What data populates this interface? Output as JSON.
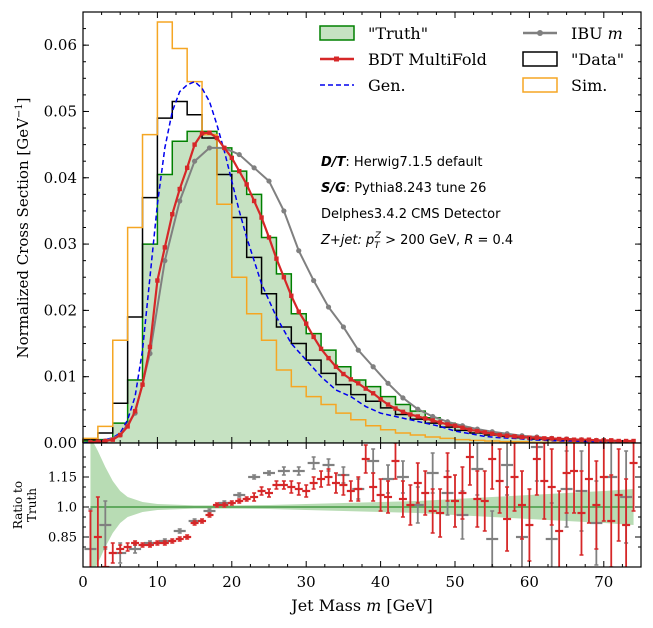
{
  "chart_data": {
    "type": "histogram",
    "xlabel": "Jet Mass",
    "xlabel_var": "m",
    "xlabel_unit": "[GeV]",
    "ylabel_main": "Normalized Cross Section [GeV",
    "ylabel_sup": "−1",
    "ylabel_close": "]",
    "ratio_ylabel_1": "Ratio to",
    "ratio_ylabel_2": "Truth",
    "xlim": [
      0,
      75
    ],
    "ylim": [
      0,
      0.065
    ],
    "ratio_ylim": [
      0.7,
      1.32
    ],
    "x_ticks": [
      "0",
      "10",
      "20",
      "30",
      "40",
      "50",
      "60",
      "70"
    ],
    "y_ticks": [
      "0.00",
      "0.01",
      "0.02",
      "0.03",
      "0.04",
      "0.05",
      "0.06"
    ],
    "ratio_ticks": [
      "0.85",
      "1.0",
      "1.15"
    ],
    "bin_edges": [
      0,
      2,
      4,
      6,
      8,
      10,
      12,
      14,
      16,
      18,
      20,
      22,
      24,
      26,
      28,
      30,
      32,
      34,
      36,
      38,
      40,
      42,
      44,
      46,
      48,
      50,
      52,
      54,
      56,
      58,
      60,
      62,
      64,
      66,
      68,
      70,
      72,
      74
    ],
    "series": [
      {
        "name": "\"Truth\"",
        "style": "filled-step",
        "values": [
          0.0003,
          0.0005,
          0.003,
          0.0095,
          0.03,
          0.0405,
          0.0455,
          0.047,
          0.047,
          0.0445,
          0.041,
          0.0375,
          0.031,
          0.0255,
          0.0195,
          0.0165,
          0.014,
          0.0115,
          0.0095,
          0.0085,
          0.007,
          0.0058,
          0.0048,
          0.0038,
          0.003,
          0.0024,
          0.0019,
          0.0015,
          0.0012,
          0.001,
          0.0008,
          0.0007,
          0.0006,
          0.0005,
          0.0004,
          0.0003,
          0.0003
        ]
      },
      {
        "name": "\"Data\"",
        "style": "step",
        "values": [
          0.0005,
          0.0015,
          0.006,
          0.019,
          0.037,
          0.049,
          0.0515,
          0.0495,
          0.046,
          0.0405,
          0.034,
          0.028,
          0.0225,
          0.0175,
          0.015,
          0.0125,
          0.0105,
          0.0088,
          0.0073,
          0.0063,
          0.0053,
          0.0043,
          0.0036,
          0.003,
          0.0024,
          0.0019,
          0.0015,
          0.0012,
          0.001,
          0.0008,
          0.0006,
          0.0005,
          0.0004,
          0.0004,
          0.0003,
          0.0003,
          0.0002
        ]
      },
      {
        "name": "Sim.",
        "style": "step",
        "values": [
          0.0007,
          0.0025,
          0.0155,
          0.0325,
          0.0465,
          0.0635,
          0.0595,
          0.0545,
          0.0465,
          0.036,
          0.025,
          0.0195,
          0.0155,
          0.011,
          0.0085,
          0.007,
          0.0058,
          0.0045,
          0.0035,
          0.0026,
          0.002,
          0.0015,
          0.0012,
          0.0009,
          0.0007,
          0.0005,
          0.0004,
          0.0003,
          0.0002,
          0.0002,
          0.0001,
          0.0001,
          0.0001,
          0.0001,
          0.0001,
          0.0001,
          0.0001
        ]
      },
      {
        "name": "BDT MultiFold",
        "style": "line-markers",
        "x": [
          1,
          2,
          3,
          4,
          5,
          6,
          7,
          8,
          9,
          10,
          11,
          12,
          13,
          14,
          15,
          16,
          17,
          18,
          19,
          20,
          21,
          22,
          23,
          24,
          25,
          26,
          27,
          28,
          29,
          30,
          31,
          32,
          33,
          34,
          35,
          36,
          37,
          38,
          39,
          40,
          41,
          42,
          43,
          44,
          45,
          46,
          47,
          48,
          49,
          50,
          51,
          52,
          53,
          54,
          55,
          56,
          57,
          58,
          59,
          60,
          61,
          62,
          63,
          64,
          65,
          66,
          67,
          68,
          69,
          70,
          71,
          72,
          73,
          74
        ],
        "values": [
          0.0001,
          0.0002,
          0.0003,
          0.0005,
          0.0012,
          0.0025,
          0.0048,
          0.0088,
          0.0145,
          0.0245,
          0.0295,
          0.0345,
          0.0383,
          0.0415,
          0.045,
          0.0467,
          0.0468,
          0.046,
          0.0445,
          0.043,
          0.041,
          0.039,
          0.0365,
          0.034,
          0.031,
          0.0278,
          0.025,
          0.0222,
          0.0198,
          0.018,
          0.016,
          0.0142,
          0.0128,
          0.0115,
          0.0104,
          0.0096,
          0.009,
          0.0082,
          0.0075,
          0.0066,
          0.0058,
          0.0052,
          0.0047,
          0.0043,
          0.004,
          0.0037,
          0.0034,
          0.0031,
          0.0028,
          0.0026,
          0.0023,
          0.002,
          0.0018,
          0.0016,
          0.0014,
          0.0012,
          0.0011,
          0.001,
          0.0009,
          0.0008,
          0.0008,
          0.0007,
          0.0007,
          0.0006,
          0.0006,
          0.0005,
          0.0005,
          0.0005,
          0.0004,
          0.0004,
          0.0004,
          0.0003,
          0.0003,
          0.0003
        ]
      },
      {
        "name": "IBU m",
        "style": "line-markers",
        "x": [
          1,
          3,
          5,
          7,
          9,
          11,
          13,
          15,
          17,
          19,
          21,
          23,
          25,
          27,
          29,
          31,
          33,
          35,
          37,
          39,
          41,
          43,
          45,
          47,
          49,
          51,
          53,
          55,
          57,
          59,
          61,
          63,
          65,
          67,
          69,
          71,
          73
        ],
        "values": [
          0.0001,
          0.0003,
          0.0012,
          0.0045,
          0.0135,
          0.0275,
          0.0365,
          0.0425,
          0.0445,
          0.0445,
          0.0435,
          0.0415,
          0.0395,
          0.035,
          0.029,
          0.0245,
          0.0205,
          0.0175,
          0.014,
          0.0115,
          0.009,
          0.0068,
          0.0051,
          0.004,
          0.0032,
          0.0026,
          0.0021,
          0.0017,
          0.0014,
          0.0011,
          0.0009,
          0.0007,
          0.0006,
          0.0005,
          0.0004,
          0.0003,
          0.0002
        ]
      },
      {
        "name": "Gen.",
        "style": "dashed",
        "x": [
          0,
          2,
          4,
          5,
          6,
          7,
          8,
          9,
          10,
          11,
          12,
          13,
          14,
          15,
          16,
          17,
          18,
          19,
          20,
          21,
          22,
          24,
          26,
          28,
          30,
          32,
          34,
          36,
          38,
          40,
          42,
          44,
          46,
          48,
          50,
          52,
          54,
          56,
          58,
          60,
          62,
          64,
          66,
          68,
          70,
          72,
          74
        ],
        "values": [
          0.0,
          0.0002,
          0.0008,
          0.0015,
          0.0035,
          0.007,
          0.014,
          0.025,
          0.036,
          0.0445,
          0.05,
          0.053,
          0.054,
          0.0545,
          0.0535,
          0.0515,
          0.048,
          0.044,
          0.0395,
          0.035,
          0.031,
          0.024,
          0.019,
          0.015,
          0.0125,
          0.01,
          0.008,
          0.007,
          0.0055,
          0.0045,
          0.004,
          0.0035,
          0.003,
          0.0025,
          0.0018,
          0.0014,
          0.001,
          0.0008,
          0.0007,
          0.0005,
          0.0004,
          0.0003,
          0.0003,
          0.0002,
          0.0002,
          0.0001,
          0.0001
        ]
      }
    ],
    "ratio_series": [
      {
        "name": "BDT MultiFold",
        "x": [
          1,
          2,
          3,
          4,
          5,
          6,
          7,
          8,
          9,
          10,
          11,
          12,
          13,
          14,
          15,
          16,
          17,
          18,
          19,
          20,
          21,
          22,
          23,
          24,
          25,
          26,
          27,
          28,
          29,
          30,
          31,
          32,
          33,
          34,
          35,
          36,
          37,
          38,
          39,
          40,
          41,
          42,
          43,
          44,
          45,
          46,
          47,
          48,
          49,
          50,
          51,
          52,
          53,
          54,
          55,
          56,
          57,
          58,
          59,
          60,
          61,
          62,
          63,
          64,
          65,
          66,
          67,
          68,
          69,
          70,
          71,
          72,
          73,
          74
        ],
        "values": [
          0.68,
          0.85,
          0.7,
          0.77,
          0.79,
          0.8,
          0.82,
          0.81,
          0.81,
          0.82,
          0.82,
          0.83,
          0.84,
          0.85,
          0.92,
          0.93,
          0.96,
          1.01,
          1.01,
          1.02,
          1.03,
          1.04,
          1.05,
          1.08,
          1.07,
          1.11,
          1.11,
          1.1,
          1.09,
          1.08,
          1.12,
          1.14,
          1.15,
          1.12,
          1.11,
          1.08,
          1.09,
          1.24,
          1.1,
          1.06,
          1.05,
          1.23,
          1.04,
          1.01,
          1.12,
          1.07,
          0.98,
          0.97,
          1.15,
          1.03,
          1.07,
          1.25,
          1.04,
          1.03,
          1.24,
          1.13,
          0.94,
          1.15,
          1.01,
          0.91,
          1.24,
          1.13,
          1.1,
          0.88,
          1.17,
          1.18,
          0.97,
          1.14,
          1.01,
          1.15,
          0.93,
          1.06,
          0.91,
          1.22
        ],
        "errors": [
          0.3,
          0.2,
          0.1,
          0.05,
          0.02,
          0.02,
          0.01,
          0.01,
          0.01,
          0.01,
          0.01,
          0.01,
          0.01,
          0.01,
          0.01,
          0.01,
          0.01,
          0.01,
          0.01,
          0.01,
          0.01,
          0.01,
          0.02,
          0.02,
          0.02,
          0.02,
          0.02,
          0.03,
          0.03,
          0.03,
          0.03,
          0.04,
          0.04,
          0.05,
          0.05,
          0.05,
          0.06,
          0.07,
          0.07,
          0.08,
          0.08,
          0.09,
          0.09,
          0.1,
          0.1,
          0.11,
          0.11,
          0.12,
          0.12,
          0.13,
          0.13,
          0.14,
          0.14,
          0.15,
          0.15,
          0.16,
          0.16,
          0.17,
          0.17,
          0.18,
          0.18,
          0.19,
          0.19,
          0.2,
          0.2,
          0.21,
          0.21,
          0.22,
          0.22,
          0.22,
          0.23,
          0.23,
          0.23,
          0.24
        ]
      },
      {
        "name": "IBU m",
        "x": [
          1,
          3,
          5,
          7,
          9,
          11,
          13,
          15,
          17,
          19,
          21,
          23,
          25,
          27,
          29,
          31,
          33,
          35,
          37,
          39,
          41,
          43,
          45,
          47,
          49,
          51,
          53,
          55,
          57,
          59,
          61,
          63,
          65,
          67,
          69,
          71,
          73
        ],
        "values": [
          0.79,
          0.91,
          0.77,
          0.79,
          0.82,
          0.83,
          0.88,
          0.93,
          0.98,
          1.02,
          1.06,
          1.15,
          1.17,
          1.18,
          1.18,
          1.22,
          1.21,
          1.16,
          1.09,
          1.23,
          1.14,
          1.15,
          1.01,
          1.17,
          1.07,
          0.96,
          1.19,
          0.84,
          1.21,
          0.85,
          1.3,
          0.84,
          1.09,
          1.08,
          0.92,
          1.15,
          1.05
        ],
        "errors": [
          0.2,
          0.12,
          0.05,
          0.02,
          0.01,
          0.01,
          0.01,
          0.01,
          0.01,
          0.01,
          0.01,
          0.01,
          0.01,
          0.02,
          0.02,
          0.03,
          0.03,
          0.04,
          0.05,
          0.06,
          0.07,
          0.08,
          0.09,
          0.1,
          0.11,
          0.12,
          0.13,
          0.14,
          0.15,
          0.16,
          0.17,
          0.18,
          0.19,
          0.2,
          0.21,
          0.22,
          0.23
        ]
      }
    ],
    "truth_band": {
      "x": [
        1,
        2,
        3,
        4,
        5,
        6,
        8,
        10,
        15,
        20,
        25,
        30,
        35,
        40,
        45,
        50,
        55,
        60,
        65,
        70,
        74
      ],
      "halfwidth": [
        0.35,
        0.28,
        0.2,
        0.13,
        0.08,
        0.05,
        0.025,
        0.015,
        0.008,
        0.008,
        0.01,
        0.015,
        0.02,
        0.025,
        0.03,
        0.04,
        0.05,
        0.06,
        0.07,
        0.08,
        0.09
      ]
    },
    "annotations": {
      "line1_b": "D/T",
      "line1": ": Herwig7.1.5 default",
      "line2_b": "S/G",
      "line2": ": Pythia8.243 tune 26",
      "line3": "Delphes3.4.2 CMS Detector",
      "line4_a": "Z+jet: ",
      "line4_var": "p",
      "line4_sub": "T",
      "line4_sup": "Z",
      "line4_b": " > 200 GeV, ",
      "line4_r": "R",
      "line4_c": " = 0.4"
    },
    "legend_placement": "top-right",
    "colors": {
      "truth_fill": "#c6e2c2",
      "truth_edge": "#008000",
      "data": "#000000",
      "sim": "#f5a623",
      "multifold": "#d62728",
      "ibu": "#808080",
      "gen": "#0000ee",
      "band": "#b8dcb4",
      "ratio_line": "#2e8b2e"
    }
  }
}
